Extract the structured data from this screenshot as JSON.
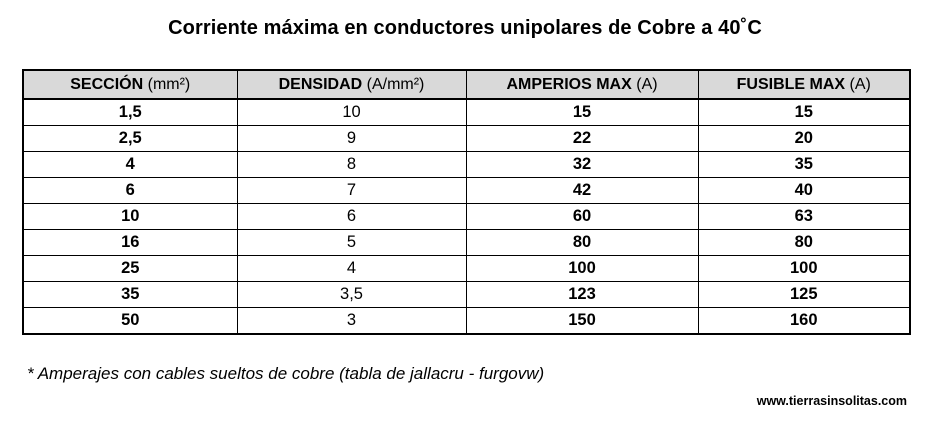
{
  "title": "Corriente máxima en conductores unipolares de Cobre a 40˚C",
  "table": {
    "headers": [
      {
        "main": "SECCIÓN",
        "unit": "(mm²)"
      },
      {
        "main": "DENSIDAD",
        "unit": "(A/mm²)"
      },
      {
        "main": "AMPERIOS MAX",
        "unit": "(A)"
      },
      {
        "main": "FUSIBLE MAX",
        "unit": "(A)"
      }
    ],
    "rows": [
      [
        "1,5",
        "10",
        "15",
        "15"
      ],
      [
        "2,5",
        "9",
        "22",
        "20"
      ],
      [
        "4",
        "8",
        "32",
        "35"
      ],
      [
        "6",
        "7",
        "42",
        "40"
      ],
      [
        "10",
        "6",
        "60",
        "63"
      ],
      [
        "16",
        "5",
        "80",
        "80"
      ],
      [
        "25",
        "4",
        "100",
        "100"
      ],
      [
        "35",
        "3,5",
        "123",
        "125"
      ],
      [
        "50",
        "3",
        "150",
        "160"
      ]
    ]
  },
  "note": "* Amperajes con cables sueltos de cobre  (tabla de jallacru - furgovw)",
  "credit": "www.tierrasinsolitas.com"
}
